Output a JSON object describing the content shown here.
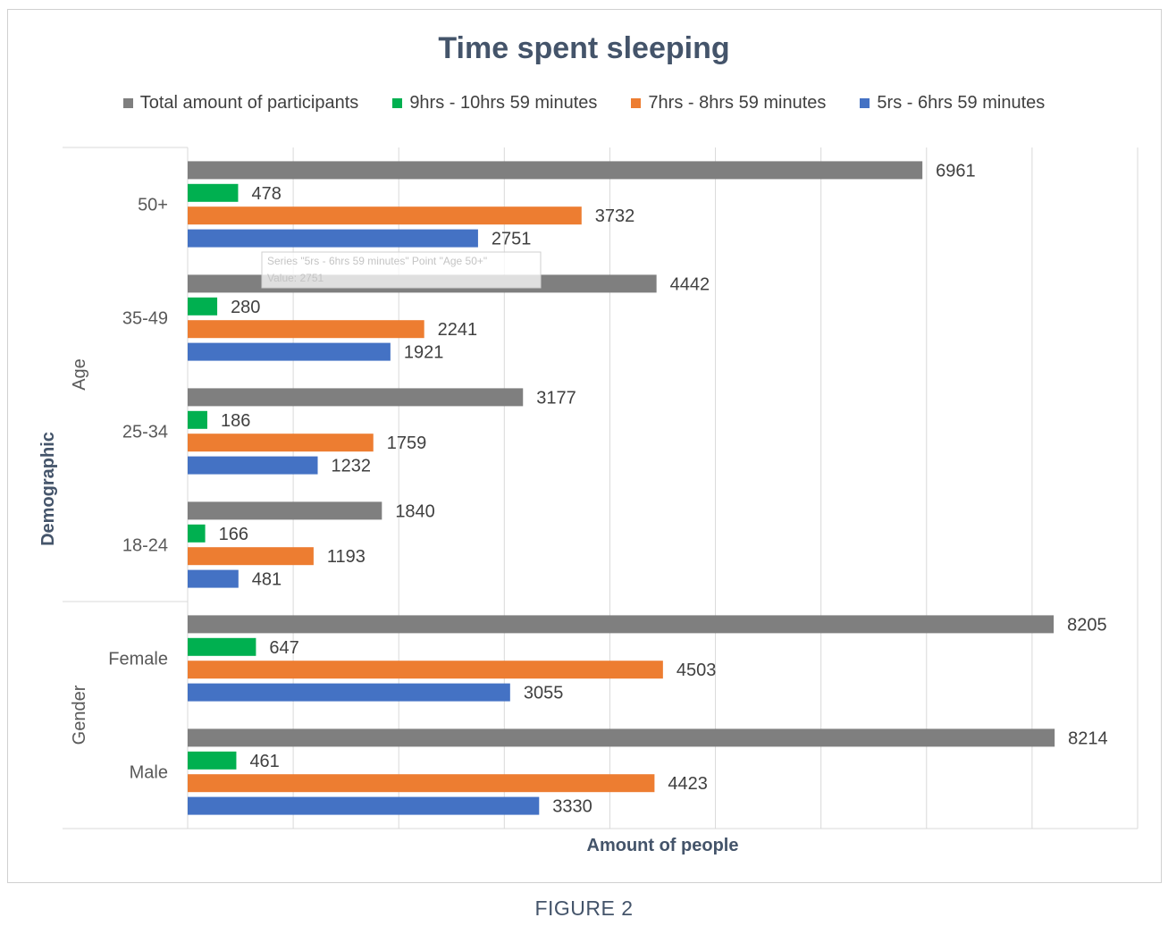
{
  "caption": "FIGURE 2",
  "chart_data": {
    "type": "bar",
    "orientation": "horizontal",
    "title": "Time spent sleeping",
    "xlabel": "Amount of people",
    "ylabel": "Demographic",
    "xlim": [
      0,
      9000
    ],
    "grid": true,
    "legend_position": "top",
    "groups": [
      {
        "label": "Age",
        "categories": [
          "50+",
          "35-49",
          "25-34",
          "18-24"
        ]
      },
      {
        "label": "Gender",
        "categories": [
          "Female",
          "Male"
        ]
      }
    ],
    "categories": [
      "50+",
      "35-49",
      "25-34",
      "18-24",
      "Female",
      "Male"
    ],
    "series": [
      {
        "name": "Total amount of participants",
        "color": "#7f7f7f",
        "values": [
          6961,
          4442,
          3177,
          1840,
          8205,
          8214
        ]
      },
      {
        "name": "9hrs - 10hrs 59 minutes",
        "color": "#00b050",
        "values": [
          478,
          280,
          186,
          166,
          647,
          461
        ]
      },
      {
        "name": "7hrs - 8hrs 59 minutes",
        "color": "#ed7d31",
        "values": [
          3732,
          2241,
          1759,
          1193,
          4503,
          4423
        ]
      },
      {
        "name": "5rs - 6hrs 59 minutes",
        "color": "#4472c4",
        "values": [
          2751,
          1921,
          1232,
          481,
          3055,
          3330
        ]
      }
    ],
    "tooltip": {
      "line1": "Series \"5rs - 6hrs 59 minutes\" Point \"Age 50+\"",
      "line2": "Value: 2751"
    }
  }
}
